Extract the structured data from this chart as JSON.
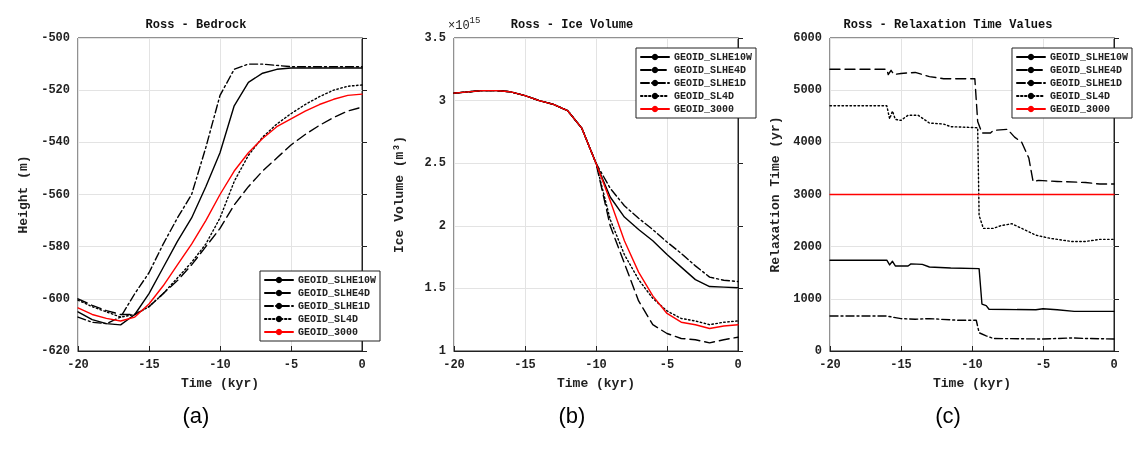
{
  "chart_data": [
    {
      "type": "line",
      "title": "Ross - Bedrock",
      "xlabel": "Time (kyr)",
      "ylabel": "Height (m)",
      "annotations": [
        "(a)"
      ],
      "xlim": [
        -20,
        0
      ],
      "xticks": [
        -20,
        -15,
        -10,
        -5,
        0
      ],
      "ylim": [
        -620,
        -500
      ],
      "yticks": [
        -620,
        -600,
        -580,
        -560,
        -540,
        -520,
        -500
      ],
      "grid": true,
      "legend": "bottom right",
      "marker": "none",
      "x": [
        -20,
        -19,
        -18,
        -17,
        -16,
        -15,
        -14,
        -13,
        -12,
        -11,
        -10,
        -9,
        -8,
        -7,
        -6,
        -5,
        -4,
        -3,
        -2,
        -1,
        0
      ],
      "series": [
        {
          "name": "GEOID_SLHE10W",
          "color": "#000000",
          "line_style": "solid",
          "values": [
            -605,
            -608,
            -609.5,
            -610,
            -606,
            -598,
            -588,
            -578,
            -569,
            -557,
            -544,
            -526,
            -517,
            -513.5,
            -512,
            -511.5,
            -511.5,
            -511.5,
            -511.5,
            -511.5,
            -511.5
          ]
        },
        {
          "name": "GEOID_SLHE4D",
          "color": "#000000",
          "line_style": "dashed",
          "values": [
            -600,
            -602.5,
            -604.5,
            -606,
            -606,
            -603,
            -598,
            -593,
            -587,
            -580,
            -573,
            -564,
            -557,
            -551,
            -546,
            -541,
            -537,
            -533.5,
            -530.5,
            -528,
            -526.5
          ]
        },
        {
          "name": "GEOID_SLHE1D",
          "color": "#000000",
          "line_style": "dashdot",
          "values": [
            -607,
            -609,
            -609.5,
            -607,
            -598,
            -590,
            -579,
            -569,
            -560,
            -542,
            -522,
            -512,
            -510,
            -510,
            -510.5,
            -511,
            -511,
            -511,
            -511,
            -511,
            -511
          ]
        },
        {
          "name": "GEOID_SL4D",
          "color": "#000000",
          "line_style": "dotted",
          "values": [
            -600.5,
            -603,
            -605,
            -607,
            -606,
            -603,
            -598,
            -592,
            -586,
            -579,
            -569,
            -555,
            -545,
            -538,
            -533,
            -529,
            -525.5,
            -522.5,
            -520,
            -518.5,
            -518
          ]
        },
        {
          "name": "GEOID_3000",
          "color": "#ff0000",
          "line_style": "solid",
          "values": [
            -603.5,
            -606,
            -607.5,
            -608.5,
            -607,
            -602,
            -595,
            -587,
            -579,
            -570,
            -560,
            -551,
            -544,
            -538.5,
            -534,
            -531,
            -528,
            -525.5,
            -523.5,
            -522,
            -521.5
          ]
        }
      ]
    },
    {
      "type": "line",
      "title": "Ross - Ice Volume",
      "xlabel": "Time (kyr)",
      "ylabel": "Ice Volume (m³)",
      "annotations": [
        "×10$^{15}$",
        "(b)"
      ],
      "xlim": [
        -20,
        0
      ],
      "xticks": [
        -20,
        -15,
        -10,
        -5,
        0
      ],
      "ylim": [
        1,
        3.5
      ],
      "yticks": [
        1,
        1.5,
        2,
        2.5,
        3,
        3.5
      ],
      "grid": true,
      "legend": "top right",
      "marker": "none",
      "x": [
        -20,
        -19,
        -18,
        -17,
        -16,
        -15,
        -14,
        -13,
        -12,
        -11,
        -10,
        -9,
        -8,
        -7,
        -6,
        -5,
        -4,
        -3,
        -2,
        -1,
        0
      ],
      "series": [
        {
          "name": "GEOID_SLHE10W",
          "color": "#000000",
          "line_style": "solid",
          "values": [
            3.06,
            3.07,
            3.08,
            3.08,
            3.07,
            3.04,
            3.0,
            2.97,
            2.92,
            2.78,
            2.5,
            2.23,
            2.07,
            1.97,
            1.88,
            1.77,
            1.67,
            1.57,
            1.515,
            1.51,
            1.505
          ]
        },
        {
          "name": "GEOID_SLHE4D",
          "color": "#000000",
          "line_style": "dashed",
          "values": [
            3.06,
            3.07,
            3.08,
            3.08,
            3.07,
            3.04,
            3.0,
            2.97,
            2.92,
            2.78,
            2.5,
            2.0,
            1.7,
            1.4,
            1.21,
            1.14,
            1.1,
            1.09,
            1.065,
            1.09,
            1.11
          ]
        },
        {
          "name": "GEOID_SLHE1D",
          "color": "#000000",
          "line_style": "dashdot",
          "values": [
            3.06,
            3.07,
            3.08,
            3.08,
            3.07,
            3.04,
            3.0,
            2.97,
            2.92,
            2.78,
            2.5,
            2.3,
            2.16,
            2.06,
            1.97,
            1.87,
            1.78,
            1.68,
            1.59,
            1.565,
            1.555
          ]
        },
        {
          "name": "GEOID_SL4D",
          "color": "#000000",
          "line_style": "dotted",
          "values": [
            3.06,
            3.07,
            3.08,
            3.08,
            3.07,
            3.04,
            3.0,
            2.97,
            2.92,
            2.78,
            2.5,
            2.05,
            1.77,
            1.57,
            1.42,
            1.32,
            1.26,
            1.24,
            1.21,
            1.23,
            1.24
          ]
        },
        {
          "name": "GEOID_3000",
          "color": "#ff0000",
          "line_style": "solid",
          "values": [
            3.06,
            3.07,
            3.08,
            3.08,
            3.07,
            3.04,
            3.0,
            2.97,
            2.92,
            2.78,
            2.5,
            2.2,
            1.88,
            1.63,
            1.44,
            1.3,
            1.23,
            1.21,
            1.18,
            1.2,
            1.21
          ]
        }
      ]
    },
    {
      "type": "line",
      "title": "Ross - Relaxation Time Values",
      "xlabel": "Time (kyr)",
      "ylabel": "Relaxation Time (yr)",
      "annotations": [
        "(c)"
      ],
      "xlim": [
        -20,
        0
      ],
      "xticks": [
        -20,
        -15,
        -10,
        -5,
        0
      ],
      "ylim": [
        0,
        6000
      ],
      "yticks": [
        0,
        1000,
        2000,
        3000,
        4000,
        5000,
        6000
      ],
      "grid": true,
      "legend": "top right",
      "marker": "none",
      "series": [
        {
          "name": "GEOID_SLHE10W",
          "color": "#000000",
          "line_style": "solid",
          "x": [
            -20,
            -16,
            -15.8,
            -15.6,
            -15.4,
            -14.5,
            -14.3,
            -13.5,
            -13,
            -11.5,
            -9.5,
            -9.3,
            -9,
            -8.8,
            -5.5,
            -5,
            -4,
            -2.8,
            0
          ],
          "values": [
            1740,
            1740,
            1650,
            1720,
            1630,
            1630,
            1670,
            1660,
            1610,
            1590,
            1580,
            900,
            870,
            800,
            790,
            810,
            790,
            760,
            760
          ]
        },
        {
          "name": "GEOID_SLHE4D",
          "color": "#000000",
          "line_style": "dashed",
          "x": [
            -20,
            -16,
            -15.9,
            -15.7,
            -15.5,
            -15,
            -14,
            -13,
            -12,
            -9.8,
            -9.6,
            -9.3,
            -8.7,
            -8.5,
            -7.5,
            -7,
            -6.5,
            -6,
            -5.7,
            -5.3,
            -4,
            -2,
            -1,
            0
          ],
          "values": [
            5400,
            5400,
            5300,
            5380,
            5300,
            5320,
            5340,
            5260,
            5220,
            5220,
            4400,
            4180,
            4180,
            4230,
            4250,
            4100,
            4000,
            3700,
            3250,
            3270,
            3250,
            3230,
            3200,
            3200
          ]
        },
        {
          "name": "GEOID_SLHE1D",
          "color": "#000000",
          "line_style": "dashdot",
          "x": [
            -20,
            -16,
            -15,
            -14,
            -13,
            -11,
            -9.7,
            -9.5,
            -9,
            -8.5,
            -5,
            -3,
            -2,
            0
          ],
          "values": [
            670,
            670,
            620,
            610,
            620,
            590,
            590,
            350,
            290,
            240,
            230,
            250,
            240,
            230
          ]
        },
        {
          "name": "GEOID_SL4D",
          "color": "#000000",
          "line_style": "dotted",
          "x": [
            -20,
            -16,
            -15.8,
            -15.6,
            -15.4,
            -15,
            -14.5,
            -13.8,
            -13,
            -12,
            -11.5,
            -9.6,
            -9.5,
            -9.2,
            -8.5,
            -8,
            -7.2,
            -6.5,
            -5.5,
            -4.5,
            -3,
            -2,
            -1,
            0
          ],
          "values": [
            4700,
            4700,
            4450,
            4600,
            4440,
            4420,
            4520,
            4520,
            4370,
            4350,
            4300,
            4280,
            2600,
            2350,
            2350,
            2400,
            2440,
            2350,
            2220,
            2160,
            2100,
            2100,
            2140,
            2140
          ]
        },
        {
          "name": "GEOID_3000",
          "color": "#ff0000",
          "line_style": "solid",
          "x": [
            -20,
            0
          ],
          "values": [
            3000,
            3000
          ]
        }
      ]
    }
  ]
}
